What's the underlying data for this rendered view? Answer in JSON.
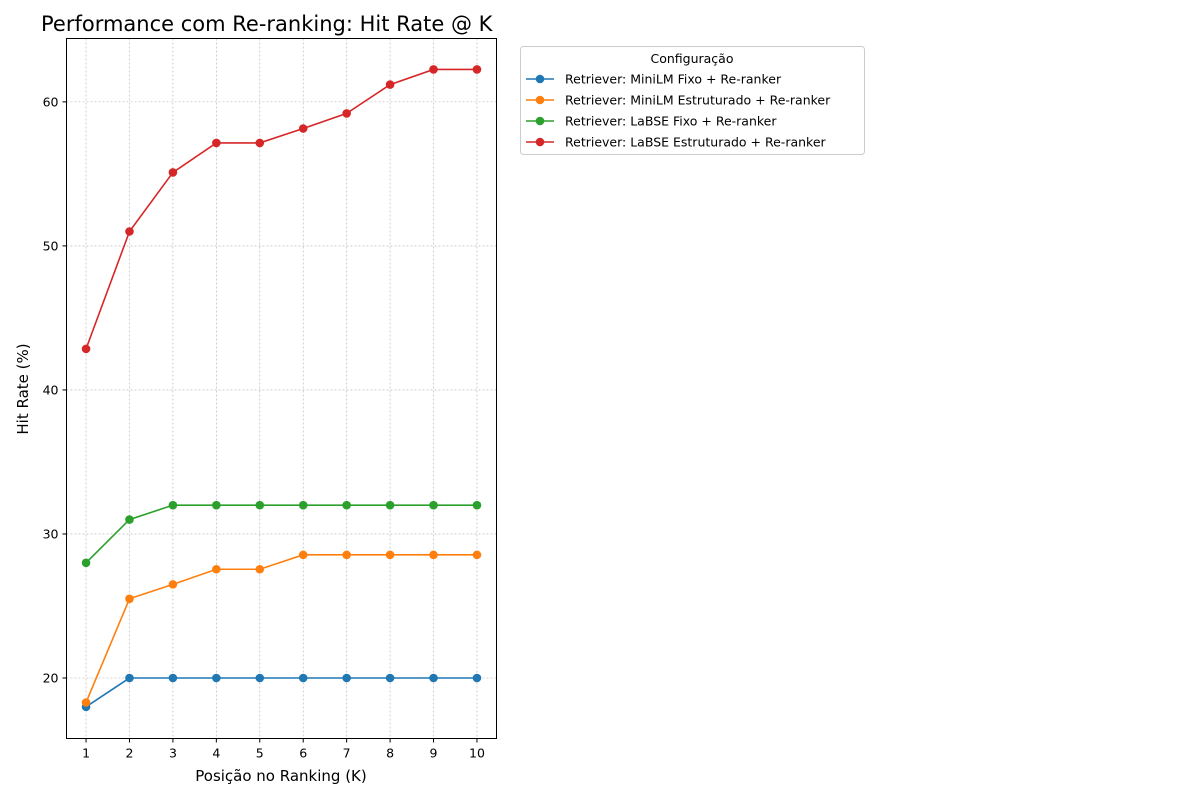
{
  "chart_data": {
    "type": "line",
    "title": "Performance com Re-ranking: Hit Rate @ K",
    "xlabel": "Posição no Ranking (K)",
    "ylabel": "Hit Rate (%)",
    "x": [
      1,
      2,
      3,
      4,
      5,
      6,
      7,
      8,
      9,
      10
    ],
    "xticks": [
      "1",
      "2",
      "3",
      "4",
      "5",
      "6",
      "7",
      "8",
      "9",
      "10"
    ],
    "yticks": [
      20,
      30,
      40,
      50,
      60
    ],
    "xlim": [
      0.55,
      10.45
    ],
    "ylim": [
      15.8,
      64.4
    ],
    "grid": true,
    "legend": {
      "title": "Configuração",
      "placement": "outside upper right of plot"
    },
    "series": [
      {
        "name": "Retriever: MiniLM Fixo + Re-ranker",
        "color": "#1f77b4",
        "values": [
          18,
          20,
          20,
          20,
          20,
          20,
          20,
          20,
          20,
          20
        ]
      },
      {
        "name": "Retriever: MiniLM Estruturado + Re-ranker",
        "color": "#ff7f0e",
        "values": [
          18.3,
          25.5,
          26.5,
          27.55,
          27.55,
          28.55,
          28.55,
          28.55,
          28.55,
          28.55
        ]
      },
      {
        "name": "Retriever: LaBSE Fixo + Re-ranker",
        "color": "#2ca02c",
        "values": [
          28,
          31,
          32,
          32,
          32,
          32,
          32,
          32,
          32,
          32
        ]
      },
      {
        "name": "Retriever: LaBSE Estruturado + Re-ranker",
        "color": "#d62728",
        "values": [
          42.85,
          51.0,
          55.1,
          57.15,
          57.15,
          58.15,
          59.2,
          61.2,
          62.25,
          62.25
        ]
      }
    ]
  }
}
